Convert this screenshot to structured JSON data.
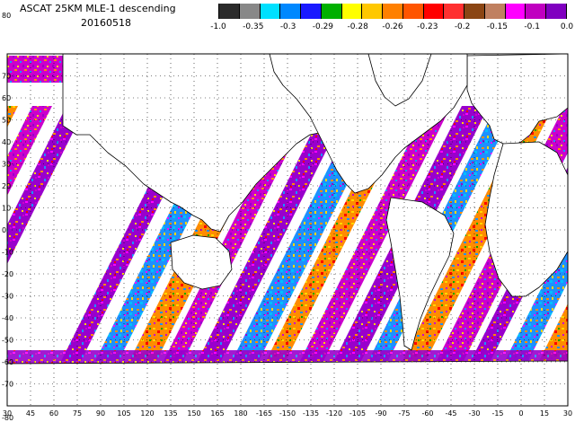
{
  "title": {
    "line1": "ASCAT 25KM MLE-1 descending",
    "line2": "20160518"
  },
  "colorbar": {
    "tick_labels": [
      "-1.0",
      "-0.35",
      "-0.3",
      "-0.29",
      "-0.28",
      "-0.26",
      "-0.23",
      "-0.2",
      "-0.15",
      "-0.1",
      "0.0"
    ],
    "segment_colors": [
      "#2b2b2b",
      "#888888",
      "#00e0ff",
      "#0088ff",
      "#1a1aff",
      "#00b000",
      "#ffff00",
      "#ffc800",
      "#ff8000",
      "#ff5500",
      "#ff0000",
      "#ff3030",
      "#8b4513",
      "#c08060",
      "#ff00ff",
      "#c000c0",
      "#8000c0"
    ]
  },
  "map": {
    "longitude_labels": [
      "30",
      "45",
      "60",
      "75",
      "90",
      "105",
      "120",
      "135",
      "150",
      "165",
      "180",
      "-165",
      "-150",
      "-135",
      "-120",
      "-105",
      "-90",
      "-75",
      "-60",
      "-45",
      "-30",
      "-15",
      "0",
      "15",
      "30"
    ],
    "latitude_labels": [
      "80",
      "70",
      "60",
      "50",
      "40",
      "30",
      "20",
      "10",
      "0",
      "-10",
      "-20",
      "-30",
      "-40",
      "-50",
      "-60",
      "-70",
      "-80"
    ],
    "swath_colors": [
      "#9900cc",
      "#cc00cc",
      "#ff00ff",
      "#1e90ff",
      "#00bfff",
      "#ff8c00",
      "#ffd700",
      "#ff0000",
      "#00aa00",
      "#8b4513",
      "#ff69b4"
    ],
    "land_outline_color": "#000000",
    "grid": "dotted"
  }
}
